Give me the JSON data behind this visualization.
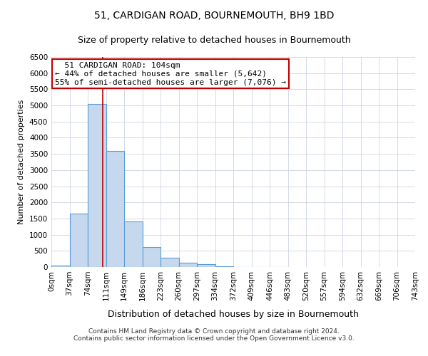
{
  "title1": "51, CARDIGAN ROAD, BOURNEMOUTH, BH9 1BD",
  "title2": "Size of property relative to detached houses in Bournemouth",
  "xlabel": "Distribution of detached houses by size in Bournemouth",
  "ylabel": "Number of detached properties",
  "footer1": "Contains HM Land Registry data © Crown copyright and database right 2024.",
  "footer2": "Contains public sector information licensed under the Open Government Licence v3.0.",
  "bins": [
    0,
    37,
    74,
    111,
    149,
    186,
    223,
    260,
    297,
    334,
    372,
    409,
    446,
    483,
    520,
    557,
    594,
    632,
    669,
    706,
    743
  ],
  "bin_labels": [
    "0sqm",
    "37sqm",
    "74sqm",
    "111sqm",
    "149sqm",
    "186sqm",
    "223sqm",
    "260sqm",
    "297sqm",
    "334sqm",
    "372sqm",
    "409sqm",
    "446sqm",
    "483sqm",
    "520sqm",
    "557sqm",
    "594sqm",
    "632sqm",
    "669sqm",
    "706sqm",
    "743sqm"
  ],
  "counts": [
    50,
    1650,
    5050,
    3600,
    1420,
    620,
    280,
    140,
    80,
    30,
    10,
    5,
    2,
    0,
    0,
    0,
    0,
    0,
    0,
    0
  ],
  "bar_color": "#c5d8ed",
  "bar_edge_color": "#5b9bd5",
  "property_size": 104,
  "property_label": "51 CARDIGAN ROAD: 104sqm",
  "pct_smaller": 44,
  "pct_smaller_n": "5,642",
  "pct_larger_semi": 55,
  "pct_larger_semi_n": "7,076",
  "vline_color": "#c00000",
  "annotation_box_color": "#c00000",
  "ylim": [
    0,
    6500
  ],
  "yticks": [
    0,
    500,
    1000,
    1500,
    2000,
    2500,
    3000,
    3500,
    4000,
    4500,
    5000,
    5500,
    6000,
    6500
  ],
  "background_color": "#ffffff",
  "grid_color": "#cdd5e0",
  "title1_fontsize": 10,
  "title2_fontsize": 9,
  "xlabel_fontsize": 9,
  "ylabel_fontsize": 8,
  "tick_fontsize": 7.5,
  "annotation_fontsize": 8,
  "footer_fontsize": 6.5
}
